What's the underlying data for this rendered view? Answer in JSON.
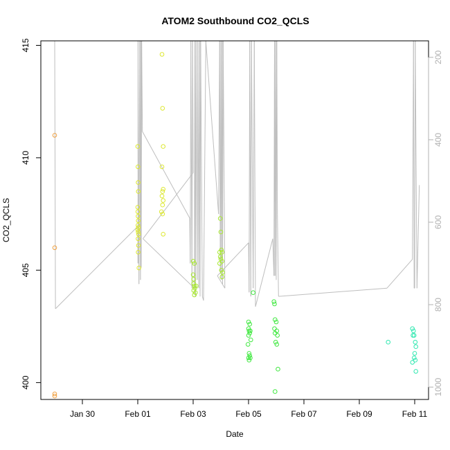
{
  "chart_data": {
    "type": "scatter",
    "title": "ATOM2 Southbound CO2_QCLS",
    "xlabel": "Date",
    "ylabel": "CO2_QCLS",
    "xlim": [
      "2017-01-28T12:00",
      "2017-02-11T12:00"
    ],
    "ylim": [
      399.25,
      415.2
    ],
    "x_ticks": [
      {
        "value": "2017-01-30",
        "label": "Jan 30"
      },
      {
        "value": "2017-02-01",
        "label": "Feb 01"
      },
      {
        "value": "2017-02-03",
        "label": "Feb 03"
      },
      {
        "value": "2017-02-05",
        "label": "Feb 05"
      },
      {
        "value": "2017-02-07",
        "label": "Feb 07"
      },
      {
        "value": "2017-02-09",
        "label": "Feb 09"
      },
      {
        "value": "2017-02-11",
        "label": "Feb 11"
      }
    ],
    "y_ticks": [
      400,
      405,
      410,
      415
    ],
    "y2": {
      "ylim": [
        1030,
        160
      ],
      "ticks": [
        200,
        400,
        600,
        800,
        1000
      ],
      "color": "#b0b0b0",
      "series": {
        "type": "line",
        "color": "#bebebe",
        "points": [
          [
            "2017-01-29T00:00",
            160
          ],
          [
            "2017-01-29T00:40",
            810
          ],
          [
            "2017-02-01T00:05",
            610
          ],
          [
            "2017-02-01T00:10",
            700
          ],
          [
            "2017-02-01T00:15",
            160
          ],
          [
            "2017-02-01T01:00",
            750
          ],
          [
            "2017-02-01T01:40",
            160
          ],
          [
            "2017-02-01T02:20",
            740
          ],
          [
            "2017-02-01T02:40",
            160
          ],
          [
            "2017-02-01T03:00",
            710
          ],
          [
            "2017-02-01T03:20",
            160
          ],
          [
            "2017-02-01T04:00",
            380
          ],
          [
            "2017-02-02T21:00",
            590
          ],
          [
            "2017-02-02T21:30",
            700
          ],
          [
            "2017-02-02T22:00",
            160
          ],
          [
            "2017-02-02T23:00",
            760
          ],
          [
            "2017-02-02T23:30",
            160
          ],
          [
            "2017-02-03T00:00",
            480
          ],
          [
            "2017-02-01T04:30",
            640
          ],
          [
            "2017-02-03T01:00",
            760
          ],
          [
            "2017-02-03T01:30",
            160
          ],
          [
            "2017-02-03T02:00",
            780
          ],
          [
            "2017-02-03T02:30",
            160
          ],
          [
            "2017-02-03T03:30",
            740
          ],
          [
            "2017-02-03T04:00",
            160
          ],
          [
            "2017-02-03T05:00",
            760
          ],
          [
            "2017-02-03T05:30",
            160
          ],
          [
            "2017-02-03T06:00",
            780
          ],
          [
            "2017-02-03T06:30",
            160
          ],
          [
            "2017-02-03T08:00",
            780
          ],
          [
            "2017-02-03T09:00",
            790
          ],
          [
            "2017-02-03T11:00",
            160
          ],
          [
            "2017-02-03T22:00",
            580
          ],
          [
            "2017-02-03T23:00",
            160
          ],
          [
            "2017-02-03T23:30",
            720
          ],
          [
            "2017-02-04T00:00",
            160
          ],
          [
            "2017-02-04T00:30",
            740
          ],
          [
            "2017-02-04T01:00",
            160
          ],
          [
            "2017-02-04T01:30",
            750
          ],
          [
            "2017-02-04T02:00",
            160
          ],
          [
            "2017-02-04T03:00",
            550
          ],
          [
            "2017-02-04T03:30",
            760
          ],
          [
            "2017-02-03T21:00",
            730
          ],
          [
            "2017-02-05T00:00",
            650
          ],
          [
            "2017-02-05T00:30",
            770
          ],
          [
            "2017-02-05T01:00",
            160
          ],
          [
            "2017-02-05T02:00",
            780
          ],
          [
            "2017-02-05T02:30",
            160
          ],
          [
            "2017-02-05T04:00",
            760
          ],
          [
            "2017-02-05T05:00",
            160
          ],
          [
            "2017-02-05T06:00",
            805
          ],
          [
            "2017-02-05T21:00",
            640
          ],
          [
            "2017-02-05T22:00",
            730
          ],
          [
            "2017-02-05T22:30",
            160
          ],
          [
            "2017-02-05T23:00",
            730
          ],
          [
            "2017-02-05T23:30",
            160
          ],
          [
            "2017-02-06T00:00",
            740
          ],
          [
            "2017-02-06T00:30",
            160
          ],
          [
            "2017-02-06T01:00",
            580
          ],
          [
            "2017-02-06T02:00",
            780
          ],
          [
            "2017-02-10T00:00",
            760
          ],
          [
            "2017-02-10T22:00",
            690
          ],
          [
            "2017-02-10T23:00",
            160
          ],
          [
            "2017-02-10T23:30",
            760
          ],
          [
            "2017-02-11T00:00",
            760
          ],
          [
            "2017-02-11T00:30",
            160
          ],
          [
            "2017-02-11T02:00",
            760
          ],
          [
            "2017-02-11T04:00",
            510
          ]
        ]
      }
    },
    "series": [
      {
        "color": "#f0a040",
        "points": [
          [
            "2017-01-29T00:00",
            411.0
          ],
          [
            "2017-01-29T00:00",
            406.0
          ],
          [
            "2017-01-29T00:00",
            399.5
          ],
          [
            "2017-01-29T00:00",
            399.4
          ]
        ]
      },
      {
        "color": "#dde830",
        "points": [
          [
            "2017-02-01T00:00",
            410.5
          ],
          [
            "2017-02-01T00:10",
            409.6
          ],
          [
            "2017-02-01T00:20",
            408.9
          ],
          [
            "2017-02-01T00:30",
            408.5
          ],
          [
            "2017-02-01T00:00",
            407.8
          ],
          [
            "2017-02-01T00:05",
            407.6
          ],
          [
            "2017-02-01T00:15",
            407.4
          ],
          [
            "2017-02-01T00:25",
            407.2
          ],
          [
            "2017-02-01T00:10",
            407.0
          ],
          [
            "2017-02-01T00:30",
            406.9
          ],
          [
            "2017-02-01T00:00",
            406.8
          ],
          [
            "2017-02-01T00:20",
            406.7
          ],
          [
            "2017-02-01T00:40",
            406.6
          ],
          [
            "2017-02-01T00:15",
            406.4
          ],
          [
            "2017-02-01T00:35",
            406.1
          ],
          [
            "2017-02-01T00:20",
            405.8
          ],
          [
            "2017-02-01T01:00",
            405.1
          ],
          [
            "2017-02-01T21:00",
            414.6
          ],
          [
            "2017-02-01T21:30",
            412.2
          ],
          [
            "2017-02-01T22:00",
            410.5
          ],
          [
            "2017-02-01T21:00",
            409.6
          ],
          [
            "2017-02-01T21:30",
            408.5
          ],
          [
            "2017-02-01T22:00",
            408.6
          ],
          [
            "2017-02-01T21:00",
            408.3
          ],
          [
            "2017-02-01T22:00",
            408.1
          ],
          [
            "2017-02-01T21:30",
            407.9
          ],
          [
            "2017-02-01T20:30",
            407.6
          ],
          [
            "2017-02-01T21:30",
            407.5
          ],
          [
            "2017-02-01T22:00",
            406.6
          ]
        ]
      },
      {
        "color": "#a8e830",
        "points": [
          [
            "2017-02-03T00:00",
            405.4
          ],
          [
            "2017-02-03T01:00",
            405.3
          ],
          [
            "2017-02-03T00:00",
            404.8
          ],
          [
            "2017-02-03T00:30",
            404.6
          ],
          [
            "2017-02-03T01:00",
            404.3
          ],
          [
            "2017-02-03T01:30",
            404.2
          ],
          [
            "2017-02-03T00:30",
            404.1
          ],
          [
            "2017-02-03T02:00",
            404.0
          ],
          [
            "2017-02-03T01:00",
            403.9
          ],
          [
            "2017-02-03T00:30",
            404.4
          ],
          [
            "2017-02-03T02:30",
            404.3
          ],
          [
            "2017-02-03T23:30",
            407.3
          ],
          [
            "2017-02-04T00:00",
            406.7
          ],
          [
            "2017-02-03T23:00",
            405.8
          ],
          [
            "2017-02-04T00:30",
            405.9
          ],
          [
            "2017-02-04T01:00",
            405.8
          ],
          [
            "2017-02-03T23:30",
            405.6
          ],
          [
            "2017-02-04T00:00",
            405.5
          ],
          [
            "2017-02-04T01:00",
            405.4
          ],
          [
            "2017-02-03T23:00",
            405.3
          ],
          [
            "2017-02-04T00:30",
            405.0
          ],
          [
            "2017-02-04T01:30",
            404.9
          ],
          [
            "2017-02-04T01:00",
            404.7
          ]
        ]
      },
      {
        "color": "#40e840",
        "points": [
          [
            "2017-02-05T00:00",
            402.7
          ],
          [
            "2017-02-05T01:00",
            402.6
          ],
          [
            "2017-02-05T00:00",
            402.4
          ],
          [
            "2017-02-05T00:30",
            402.3
          ],
          [
            "2017-02-05T01:30",
            402.3
          ],
          [
            "2017-02-05T00:00",
            402.1
          ],
          [
            "2017-02-05T01:00",
            402.2
          ],
          [
            "2017-02-05T02:00",
            401.9
          ],
          [
            "2017-02-04T23:30",
            401.7
          ],
          [
            "2017-02-05T00:30",
            401.3
          ],
          [
            "2017-02-05T01:00",
            401.2
          ],
          [
            "2017-02-05T00:00",
            401.1
          ],
          [
            "2017-02-05T01:30",
            401.1
          ],
          [
            "2017-02-05T00:30",
            401.0
          ],
          [
            "2017-02-05T04:00",
            404.0
          ],
          [
            "2017-02-05T22:00",
            403.6
          ],
          [
            "2017-02-05T22:30",
            403.5
          ],
          [
            "2017-02-05T23:00",
            402.8
          ],
          [
            "2017-02-06T00:00",
            402.7
          ],
          [
            "2017-02-05T22:30",
            402.4
          ],
          [
            "2017-02-06T00:30",
            402.3
          ],
          [
            "2017-02-05T23:00",
            402.2
          ],
          [
            "2017-02-06T01:00",
            402.1
          ],
          [
            "2017-02-05T23:30",
            401.8
          ],
          [
            "2017-02-06T00:30",
            401.7
          ],
          [
            "2017-02-06T01:30",
            400.6
          ],
          [
            "2017-02-05T23:00",
            399.6
          ]
        ]
      },
      {
        "color": "#30e8b0",
        "points": [
          [
            "2017-02-10T01:00",
            401.8
          ],
          [
            "2017-02-10T22:00",
            402.4
          ],
          [
            "2017-02-10T23:00",
            402.3
          ],
          [
            "2017-02-10T22:30",
            402.1
          ],
          [
            "2017-02-10T23:30",
            402.1
          ],
          [
            "2017-02-11T00:30",
            401.8
          ],
          [
            "2017-02-11T01:00",
            401.6
          ],
          [
            "2017-02-11T00:00",
            401.3
          ],
          [
            "2017-02-10T23:30",
            401.1
          ],
          [
            "2017-02-11T00:30",
            401.0
          ],
          [
            "2017-02-10T22:00",
            400.9
          ],
          [
            "2017-02-11T01:00",
            400.5
          ]
        ]
      }
    ]
  }
}
